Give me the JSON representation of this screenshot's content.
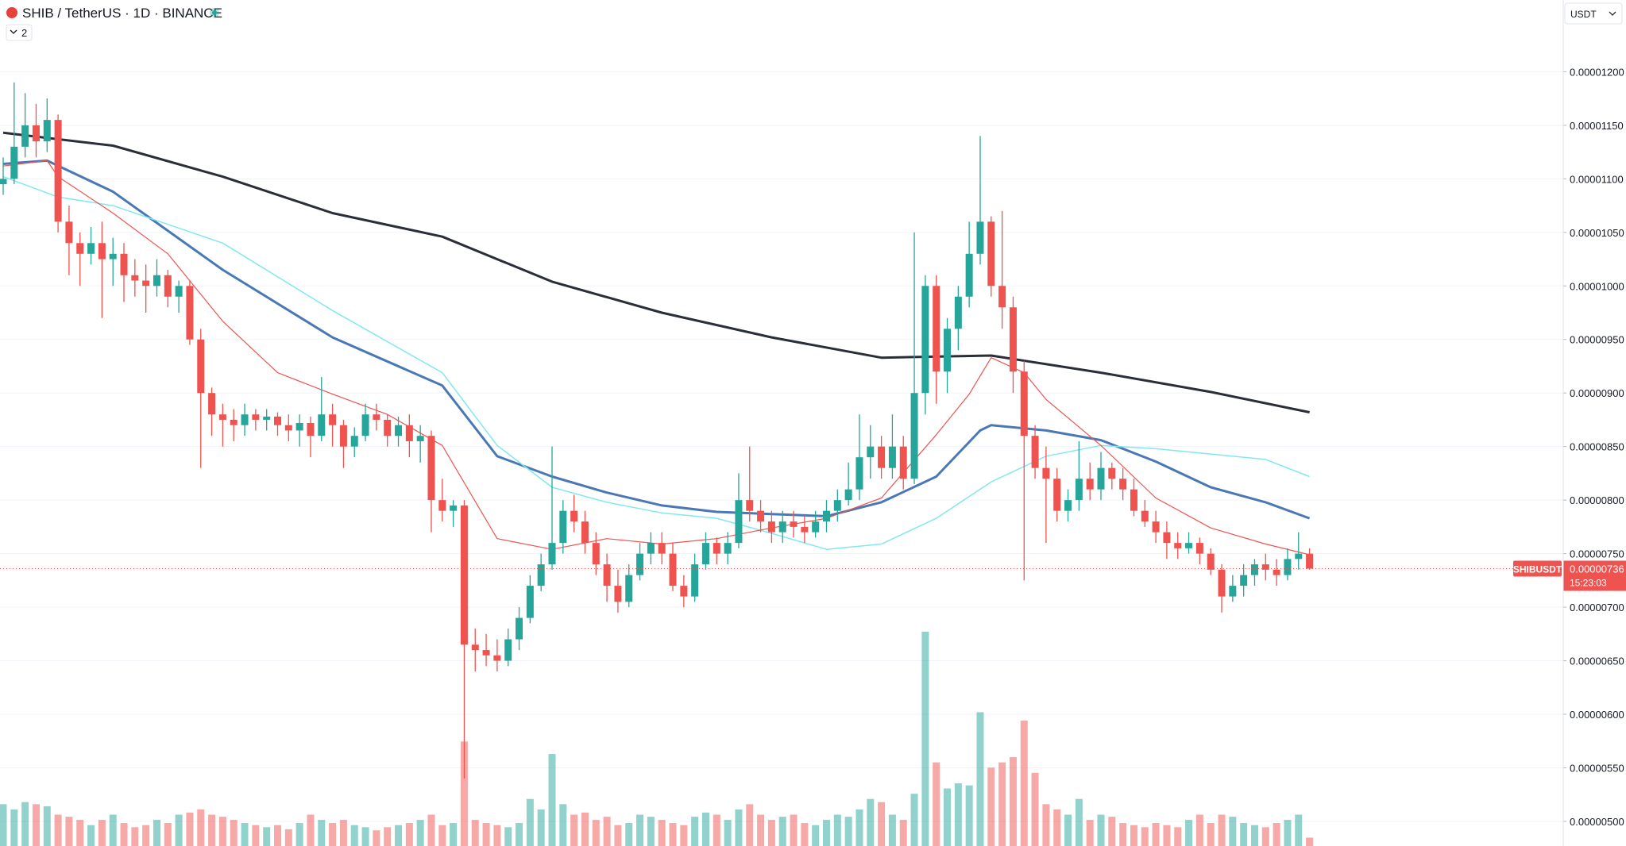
{
  "chart_data": {
    "type": "candlestick",
    "title": "SHIB / TetherUS · 1D · BINANCE",
    "indicator_count": "2",
    "currency": "USDT",
    "symbol": "SHIBUSDT",
    "current_price": {
      "value": 7.36e-06,
      "label": "0.00000736"
    },
    "countdown": "15:23:03",
    "up_color": "#26a69a",
    "down_color": "#ef5350",
    "ylim": [
      4.77e-06,
      1.267e-05
    ],
    "yticks": [
      {
        "value": 1.2e-05,
        "label": "0.00001200"
      },
      {
        "value": 1.15e-05,
        "label": "0.00001150"
      },
      {
        "value": 1.1e-05,
        "label": "0.00001100"
      },
      {
        "value": 1.05e-05,
        "label": "0.00001050"
      },
      {
        "value": 1e-05,
        "label": "0.00001000"
      },
      {
        "value": 9.5e-06,
        "label": "0.00000950"
      },
      {
        "value": 9e-06,
        "label": "0.00000900"
      },
      {
        "value": 8.5e-06,
        "label": "0.00000850"
      },
      {
        "value": 8e-06,
        "label": "0.00000800"
      },
      {
        "value": 7.5e-06,
        "label": "0.00000750"
      },
      {
        "value": 7e-06,
        "label": "0.00000700"
      },
      {
        "value": 6.5e-06,
        "label": "0.00000650"
      },
      {
        "value": 6e-06,
        "label": "0.00000600"
      },
      {
        "value": 5.5e-06,
        "label": "0.00000550"
      },
      {
        "value": 5e-06,
        "label": "0.00000500"
      }
    ],
    "grid": true,
    "open": [
      1.095e-05,
      1.1e-05,
      1.13e-05,
      1.15e-05,
      1.135e-05,
      1.155e-05,
      1.06e-05,
      1.04e-05,
      1.03e-05,
      1.04e-05,
      1.025e-05,
      1.03e-05,
      1.01e-05,
      1.005e-05,
      1e-05,
      1.01e-05,
      9.9e-06,
      1e-05,
      9.5e-06,
      9e-06,
      8.8e-06,
      8.75e-06,
      8.7e-06,
      8.8e-06,
      8.75e-06,
      8.78e-06,
      8.7e-06,
      8.65e-06,
      8.72e-06,
      8.6e-06,
      8.8e-06,
      8.7e-06,
      8.5e-06,
      8.6e-06,
      8.8e-06,
      8.75e-06,
      8.6e-06,
      8.7e-06,
      8.55e-06,
      8.6e-06,
      8e-06,
      7.9e-06,
      7.95e-06,
      6.65e-06,
      6.6e-06,
      6.55e-06,
      6.5e-06,
      6.7e-06,
      6.9e-06,
      7.2e-06,
      7.4e-06,
      7.6e-06,
      7.9e-06,
      7.8e-06,
      7.6e-06,
      7.4e-06,
      7.2e-06,
      7.05e-06,
      7.3e-06,
      7.5e-06,
      7.6e-06,
      7.5e-06,
      7.2e-06,
      7.1e-06,
      7.4e-06,
      7.6e-06,
      7.5e-06,
      7.6e-06,
      8e-06,
      7.9e-06,
      7.8e-06,
      7.7e-06,
      7.8e-06,
      7.75e-06,
      7.7e-06,
      7.8e-06,
      7.9e-06,
      8e-06,
      8.1e-06,
      8.4e-06,
      8.5e-06,
      8.3e-06,
      8.5e-06,
      8.2e-06,
      9e-06,
      1e-05,
      9.2e-06,
      9.6e-06,
      9.9e-06,
      1.03e-05,
      1.06e-05,
      1e-05,
      9.8e-06,
      9.2e-06,
      8.6e-06,
      8.3e-06,
      8.2e-06,
      7.9e-06,
      8e-06,
      8.2e-06,
      8.1e-06,
      8.3e-06,
      8.2e-06,
      8.1e-06,
      7.9e-06,
      7.8e-06,
      7.7e-06,
      7.6e-06,
      7.55e-06,
      7.6e-06,
      7.5e-06,
      7.35e-06,
      7.1e-06,
      7.2e-06,
      7.3e-06,
      7.4e-06,
      7.35e-06,
      7.3e-06,
      7.45e-06,
      7.5e-06
    ],
    "high": [
      1.12e-05,
      1.19e-05,
      1.18e-05,
      1.17e-05,
      1.175e-05,
      1.16e-05,
      1.075e-05,
      1.05e-05,
      1.055e-05,
      1.06e-05,
      1.045e-05,
      1.04e-05,
      1.025e-05,
      1.02e-05,
      1.025e-05,
      1.015e-05,
      1.005e-05,
      1.005e-05,
      9.6e-06,
      9.05e-06,
      8.9e-06,
      8.85e-06,
      8.9e-06,
      8.85e-06,
      8.85e-06,
      8.82e-06,
      8.8e-06,
      8.8e-06,
      8.78e-06,
      9.15e-06,
      8.9e-06,
      8.75e-06,
      8.68e-06,
      8.9e-06,
      8.9e-06,
      8.8e-06,
      8.78e-06,
      8.8e-06,
      8.7e-06,
      8.65e-06,
      8.2e-06,
      8e-06,
      8e-06,
      6.8e-06,
      6.75e-06,
      6.7e-06,
      6.8e-06,
      7e-06,
      7.3e-06,
      7.5e-06,
      8.5e-06,
      8e-06,
      8.05e-06,
      7.9e-06,
      7.7e-06,
      7.5e-06,
      7.35e-06,
      7.4e-06,
      7.6e-06,
      7.7e-06,
      7.7e-06,
      7.6e-06,
      7.3e-06,
      7.5e-06,
      7.7e-06,
      7.65e-06,
      7.7e-06,
      8.25e-06,
      8.5e-06,
      8e-06,
      7.9e-06,
      7.9e-06,
      7.9e-06,
      7.85e-06,
      7.9e-06,
      8e-06,
      8.1e-06,
      8.35e-06,
      8.8e-06,
      8.7e-06,
      8.6e-06,
      8.8e-06,
      8.6e-06,
      1.05e-05,
      1.01e-05,
      1.01e-05,
      9.7e-06,
      1e-05,
      1.06e-05,
      1.14e-05,
      1.065e-05,
      1.07e-05,
      9.9e-06,
      9.3e-06,
      8.7e-06,
      8.5e-06,
      8.3e-06,
      8.1e-06,
      8.55e-06,
      8.35e-06,
      8.45e-06,
      8.35e-06,
      8.3e-06,
      8.2e-06,
      8e-06,
      7.9e-06,
      7.8e-06,
      7.7e-06,
      7.7e-06,
      7.65e-06,
      7.55e-06,
      7.4e-06,
      7.3e-06,
      7.4e-06,
      7.45e-06,
      7.5e-06,
      7.45e-06,
      7.55e-06,
      7.7e-06,
      7.55e-06
    ],
    "low": [
      1.085e-05,
      1.095e-05,
      1.12e-05,
      1.12e-05,
      1.125e-05,
      1.05e-05,
      1.01e-05,
      1e-05,
      1.02e-05,
      9.7e-06,
      1e-05,
      9.85e-06,
      9.9e-06,
      9.75e-06,
      9.9e-06,
      9.8e-06,
      9.75e-06,
      9.45e-06,
      8.3e-06,
      8.6e-06,
      8.5e-06,
      8.55e-06,
      8.6e-06,
      8.65e-06,
      8.65e-06,
      8.6e-06,
      8.55e-06,
      8.5e-06,
      8.4e-06,
      8.55e-06,
      8.5e-06,
      8.3e-06,
      8.4e-06,
      8.55e-06,
      8.65e-06,
      8.5e-06,
      8.5e-06,
      8.4e-06,
      8.35e-06,
      7.7e-06,
      7.8e-06,
      7.75e-06,
      5.4e-06,
      6.4e-06,
      6.45e-06,
      6.4e-06,
      6.45e-06,
      6.6e-06,
      6.85e-06,
      7.15e-06,
      7.35e-06,
      7.5e-06,
      7.7e-06,
      7.5e-06,
      7.3e-06,
      7.05e-06,
      6.95e-06,
      7e-06,
      7.25e-06,
      7.4e-06,
      7.4e-06,
      7.15e-06,
      7e-06,
      7.05e-06,
      7.35e-06,
      7.4e-06,
      7.4e-06,
      7.55e-06,
      7.8e-06,
      7.7e-06,
      7.6e-06,
      7.6e-06,
      7.65e-06,
      7.6e-06,
      7.65e-06,
      7.7e-06,
      7.8e-06,
      7.95e-06,
      8e-06,
      8.2e-06,
      8.2e-06,
      8.2e-06,
      8.1e-06,
      8.15e-06,
      8.8e-06,
      8.9e-06,
      9e-06,
      9.4e-06,
      9.8e-06,
      1.02e-05,
      9.9e-06,
      9.6e-06,
      9e-06,
      7.25e-06,
      8.2e-06,
      7.6e-06,
      7.8e-06,
      7.8e-06,
      7.9e-06,
      8e-06,
      8e-06,
      8.1e-06,
      8e-06,
      7.85e-06,
      7.75e-06,
      7.6e-06,
      7.45e-06,
      7.45e-06,
      7.5e-06,
      7.4e-06,
      7.3e-06,
      6.95e-06,
      7.05e-06,
      7.1e-06,
      7.2e-06,
      7.25e-06,
      7.2e-06,
      7.25e-06,
      7.35e-06,
      7.35e-06
    ],
    "close": [
      1.1e-05,
      1.13e-05,
      1.15e-05,
      1.135e-05,
      1.155e-05,
      1.06e-05,
      1.04e-05,
      1.03e-05,
      1.04e-05,
      1.025e-05,
      1.03e-05,
      1.01e-05,
      1.005e-05,
      1e-05,
      1.01e-05,
      9.9e-06,
      1e-05,
      9.5e-06,
      9e-06,
      8.8e-06,
      8.75e-06,
      8.7e-06,
      8.8e-06,
      8.75e-06,
      8.78e-06,
      8.7e-06,
      8.65e-06,
      8.72e-06,
      8.6e-06,
      8.8e-06,
      8.7e-06,
      8.5e-06,
      8.6e-06,
      8.8e-06,
      8.75e-06,
      8.6e-06,
      8.7e-06,
      8.55e-06,
      8.6e-06,
      8e-06,
      7.9e-06,
      7.95e-06,
      6.65e-06,
      6.6e-06,
      6.55e-06,
      6.5e-06,
      6.7e-06,
      6.9e-06,
      7.2e-06,
      7.4e-06,
      7.6e-06,
      7.9e-06,
      7.8e-06,
      7.6e-06,
      7.4e-06,
      7.2e-06,
      7.05e-06,
      7.3e-06,
      7.5e-06,
      7.6e-06,
      7.5e-06,
      7.2e-06,
      7.1e-06,
      7.4e-06,
      7.6e-06,
      7.5e-06,
      7.6e-06,
      8e-06,
      7.9e-06,
      7.8e-06,
      7.7e-06,
      7.8e-06,
      7.75e-06,
      7.7e-06,
      7.8e-06,
      7.9e-06,
      8e-06,
      8.1e-06,
      8.4e-06,
      8.5e-06,
      8.3e-06,
      8.5e-06,
      8.2e-06,
      9e-06,
      1e-05,
      9.2e-06,
      9.6e-06,
      9.9e-06,
      1.03e-05,
      1.06e-05,
      1e-05,
      9.8e-06,
      9.2e-06,
      8.6e-06,
      8.3e-06,
      8.2e-06,
      7.9e-06,
      8e-06,
      8.2e-06,
      8.1e-06,
      8.3e-06,
      8.2e-06,
      8.1e-06,
      7.9e-06,
      7.8e-06,
      7.7e-06,
      7.6e-06,
      7.55e-06,
      7.6e-06,
      7.5e-06,
      7.35e-06,
      7.1e-06,
      7.2e-06,
      7.3e-06,
      7.4e-06,
      7.35e-06,
      7.3e-06,
      7.45e-06,
      7.5e-06,
      7.36e-06
    ],
    "volume": [
      40,
      35,
      42,
      40,
      38,
      30,
      28,
      25,
      20,
      25,
      30,
      22,
      18,
      20,
      25,
      22,
      30,
      32,
      35,
      30,
      28,
      25,
      22,
      20,
      18,
      20,
      16,
      22,
      30,
      25,
      22,
      25,
      20,
      18,
      15,
      18,
      20,
      22,
      25,
      30,
      20,
      22,
      100,
      25,
      22,
      20,
      18,
      22,
      45,
      35,
      88,
      40,
      30,
      32,
      25,
      28,
      20,
      22,
      30,
      28,
      25,
      22,
      20,
      28,
      32,
      30,
      25,
      35,
      40,
      30,
      25,
      28,
      30,
      22,
      20,
      25,
      30,
      28,
      35,
      45,
      42,
      30,
      25,
      50,
      205,
      80,
      55,
      60,
      58,
      128,
      75,
      80,
      85,
      120,
      70,
      40,
      35,
      30,
      45,
      25,
      30,
      28,
      22,
      20,
      18,
      22,
      20,
      18,
      25,
      30,
      22,
      30,
      28,
      22,
      20,
      18,
      22,
      25,
      30,
      8
    ],
    "lines": [
      {
        "color": "#2a2e39",
        "width": 3,
        "x": [
          0,
          10,
          20,
          30,
          40,
          50,
          60,
          70,
          80,
          90,
          100,
          110,
          119
        ],
        "values": [
          1.143e-05,
          1.131e-05,
          1.102e-05,
          1.068e-05,
          1.046e-05,
          1.004e-05,
          9.75e-06,
          9.52e-06,
          9.33e-06,
          9.35e-06,
          9.19e-06,
          9.01e-06,
          8.82e-06
        ]
      },
      {
        "color": "#4a78b5",
        "width": 3,
        "x": [
          0,
          4,
          10,
          20,
          30,
          40,
          45,
          50,
          55,
          60,
          65,
          70,
          75,
          80,
          85,
          89,
          90,
          95,
          100,
          105,
          110,
          115,
          119
        ],
        "values": [
          1.114e-05,
          1.117e-05,
          1.088e-05,
          1.015e-05,
          9.52e-06,
          9.07e-06,
          8.41e-06,
          8.22e-06,
          8.07e-06,
          7.95e-06,
          7.89e-06,
          7.87e-06,
          7.85e-06,
          7.98e-06,
          8.22e-06,
          8.65e-06,
          8.7e-06,
          8.65e-06,
          8.56e-06,
          8.36e-06,
          8.12e-06,
          7.98e-06,
          7.83e-06
        ]
      },
      {
        "color": "#80e8f0",
        "width": 1.5,
        "x": [
          0,
          5,
          10,
          20,
          30,
          40,
          45,
          50,
          55,
          60,
          65,
          70,
          75,
          80,
          85,
          90,
          95,
          100,
          105,
          110,
          115,
          119
        ],
        "values": [
          1.102e-05,
          1.083e-05,
          1.075e-05,
          1.04e-05,
          9.77e-06,
          9.19e-06,
          8.51e-06,
          8.12e-06,
          7.98e-06,
          7.88e-06,
          7.83e-06,
          7.69e-06,
          7.54e-06,
          7.59e-06,
          7.83e-06,
          8.17e-06,
          8.41e-06,
          8.51e-06,
          8.48e-06,
          8.43e-06,
          8.38e-06,
          8.22e-06
        ]
      },
      {
        "color": "#ef5350",
        "width": 1.2,
        "x": [
          0,
          4,
          5,
          10,
          15,
          20,
          25,
          30,
          35,
          40,
          45,
          50,
          55,
          60,
          65,
          70,
          75,
          80,
          85,
          88,
          90,
          93,
          95,
          100,
          105,
          110,
          115,
          119
        ],
        "values": [
          1.112e-05,
          1.117e-05,
          1.102e-05,
          1.068e-05,
          1.03e-05,
          9.67e-06,
          9.19e-06,
          8.99e-06,
          8.8e-06,
          8.51e-06,
          7.64e-06,
          7.54e-06,
          7.64e-06,
          7.59e-06,
          7.64e-06,
          7.74e-06,
          7.83e-06,
          8.02e-06,
          8.61e-06,
          8.99e-06,
          9.33e-06,
          9.19e-06,
          8.94e-06,
          8.51e-06,
          8.02e-06,
          7.74e-06,
          7.59e-06,
          7.49e-06
        ]
      }
    ]
  }
}
